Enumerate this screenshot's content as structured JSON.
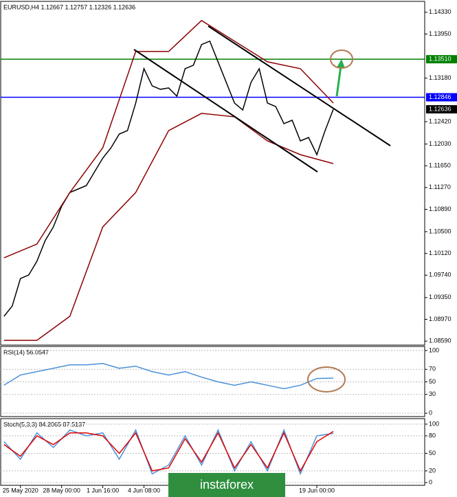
{
  "chart_data": [
    {
      "type": "line",
      "title": "EURUSD,H4  1.12667 1.12757 1.12326 1.12636",
      "xlim": [
        -0.4,
        51.1
      ],
      "ylim": [
        1.0852,
        1.1452
      ],
      "xticks": [
        {
          "value": 2,
          "label": "25 May 2020"
        },
        {
          "value": 7,
          "label": "28 May 00:00"
        },
        {
          "value": 12,
          "label": "1 Jun 16:00"
        },
        {
          "value": 17,
          "label": "4 Jun 08:00"
        },
        {
          "value": 38,
          "label": "19 Jun 00:00"
        }
      ],
      "yticks": [
        {
          "value": 1.1433,
          "label": "1.14330"
        },
        {
          "value": 1.1395,
          "label": "1.13950"
        },
        {
          "value": 1.1318,
          "label": "1.13180"
        },
        {
          "value": 1.1242,
          "label": "1.12420"
        },
        {
          "value": 1.1203,
          "label": "1.12030"
        },
        {
          "value": 1.1165,
          "label": "1.11650"
        },
        {
          "value": 1.1127,
          "label": "1.11270"
        },
        {
          "value": 1.1089,
          "label": "1.10890"
        },
        {
          "value": 1.105,
          "label": "1.10500"
        },
        {
          "value": 1.1012,
          "label": "1.10120"
        },
        {
          "value": 1.0974,
          "label": "1.09740"
        },
        {
          "value": 1.0935,
          "label": "1.09350"
        },
        {
          "value": 1.0897,
          "label": "1.08970"
        },
        {
          "value": 1.0859,
          "label": "1.08590"
        }
      ],
      "price_lines": [
        {
          "value": 1.1351,
          "label": "1.13510",
          "color": "#008000"
        },
        {
          "value": 1.12846,
          "label": "1.12846",
          "color": "#0000ff"
        }
      ],
      "current_price": {
        "value": 1.12636,
        "label": "1.12636"
      },
      "series": [
        {
          "color": "#000000",
          "x": [
            0,
            1,
            2,
            3,
            4,
            5,
            6,
            7,
            8,
            9,
            10,
            11,
            12,
            13,
            14,
            15,
            16,
            17,
            18,
            19,
            20,
            21,
            22,
            23,
            24,
            25,
            26,
            27,
            28,
            29,
            30,
            31,
            32,
            33,
            34,
            35,
            36,
            37,
            38,
            39,
            40
          ],
          "values": [
            1.09022,
            1.09202,
            1.09682,
            1.09743,
            1.09983,
            1.10343,
            1.10583,
            1.10943,
            1.11184,
            1.11244,
            1.11304,
            1.11544,
            1.11784,
            1.11964,
            1.12204,
            1.12264,
            1.12745,
            1.13345,
            1.13045,
            1.12985,
            1.13009,
            1.12865,
            1.13345,
            1.13405,
            1.13766,
            1.13826,
            1.13465,
            1.13105,
            1.12745,
            1.12625,
            1.13105,
            1.13345,
            1.12745,
            1.12685,
            1.12385,
            1.12445,
            1.12084,
            1.12144,
            1.11844,
            1.12264,
            1.12636
          ]
        },
        {
          "color": "#8b0000",
          "x": [
            0,
            4,
            8,
            12,
            16,
            20,
            24,
            28,
            32,
            36,
            40
          ],
          "values": [
            1.10043,
            1.10283,
            1.11184,
            1.11964,
            1.13645,
            1.13645,
            1.14186,
            1.13826,
            1.13465,
            1.13345,
            1.12745
          ]
        },
        {
          "color": "#8b0000",
          "x": [
            0,
            4,
            8,
            12,
            16,
            20,
            24,
            28,
            32,
            36,
            40
          ],
          "values": [
            1.08602,
            1.08602,
            1.09022,
            1.10583,
            1.11184,
            1.12264,
            1.12565,
            1.12505,
            1.12084,
            1.11844,
            1.11688
          ]
        }
      ]
    },
    {
      "type": "line",
      "title": "RSI(14) 56.0547",
      "xlim": [
        -0.4,
        51.1
      ],
      "ylim": [
        -5.4,
        106.5
      ],
      "yticks": [
        100,
        70,
        50,
        30,
        0
      ],
      "series": [
        {
          "color": "#4a90d9",
          "x": [
            0,
            2,
            4,
            6,
            8,
            10,
            12,
            14,
            16,
            18,
            20,
            22,
            24,
            26,
            28,
            30,
            32,
            34,
            36,
            38,
            40
          ],
          "values": [
            44.6,
            60.9,
            66.3,
            71.7,
            77.2,
            77.2,
            79.3,
            71.7,
            75,
            66.3,
            60.9,
            66.3,
            57.6,
            50,
            44.6,
            50,
            44.6,
            39.1,
            44.6,
            55.4,
            56.0547
          ]
        }
      ]
    },
    {
      "type": "line",
      "title": "Stoch(5,3,3) 84.2065 87.5137",
      "xlim": [
        -0.4,
        51.1
      ],
      "ylim": [
        -4.7,
        109.4
      ],
      "yticks": [
        100,
        80,
        50,
        20,
        0
      ],
      "series": [
        {
          "color": "#4a90d9",
          "x": [
            0,
            2,
            4,
            6,
            8,
            10,
            12,
            14,
            16,
            18,
            20,
            22,
            24,
            26,
            28,
            30,
            32,
            34,
            36,
            38,
            40
          ],
          "values": [
            70,
            40,
            85,
            60,
            90,
            80,
            85,
            40,
            90,
            15,
            30,
            80,
            30,
            90,
            20,
            70,
            20,
            90,
            15,
            80,
            84.2065
          ]
        },
        {
          "color": "#e00000",
          "x": [
            0,
            2,
            4,
            6,
            8,
            10,
            12,
            14,
            16,
            18,
            20,
            22,
            24,
            26,
            28,
            30,
            32,
            34,
            36,
            38,
            40
          ],
          "values": [
            65,
            45,
            80,
            65,
            85,
            85,
            80,
            50,
            85,
            20,
            25,
            75,
            35,
            85,
            25,
            65,
            25,
            85,
            20,
            70,
            87.5137
          ]
        }
      ]
    }
  ],
  "watermark": "instaforex"
}
